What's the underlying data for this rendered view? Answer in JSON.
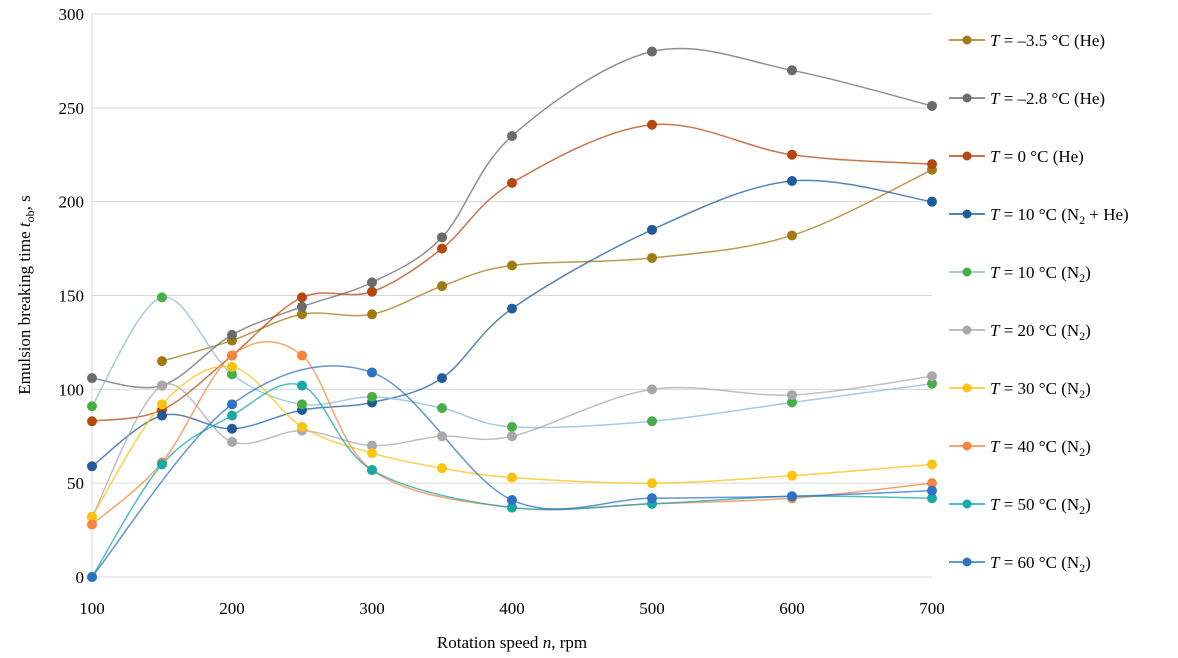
{
  "chart_data": {
    "type": "line",
    "title": "",
    "xlabel": "Rotation speed n, rpm",
    "ylabel": "Emulsion breaking time t_ob, s",
    "xlabel_parts": [
      "Rotation speed ",
      "n",
      ", rpm"
    ],
    "ylabel_parts": [
      "Emulsion breaking time ",
      "t",
      "ob",
      ", s"
    ],
    "xlim": [
      100,
      700
    ],
    "ylim": [
      0,
      300
    ],
    "x_ticks": [
      100,
      200,
      300,
      400,
      500,
      600,
      700
    ],
    "y_ticks": [
      0,
      50,
      100,
      150,
      200,
      250,
      300
    ],
    "grid": "horizontal",
    "legend_position": "right",
    "x": [
      100,
      150,
      200,
      250,
      300,
      350,
      400,
      500,
      600,
      700
    ],
    "series": [
      {
        "name": "T = –3.5 °C (He)",
        "label": " = –3.5 °C (He)",
        "color": "#a07a12",
        "values": [
          null,
          115,
          126,
          140,
          140,
          155,
          166,
          170,
          182,
          217
        ]
      },
      {
        "name": "T = –2.8 °C (He)",
        "label": " = –2.8 °C (He)",
        "color": "#6b6b6b",
        "values": [
          106,
          102,
          129,
          144,
          157,
          181,
          235,
          280,
          270,
          251
        ]
      },
      {
        "name": "T = 0 °C (He)",
        "label": " = 0 °C (He)",
        "color": "#b5470f",
        "values": [
          83,
          89,
          118,
          149,
          152,
          175,
          210,
          241,
          225,
          220
        ]
      },
      {
        "name": "T = 10 °C (N2 + He)",
        "label": " = 10 °C (N",
        "label_sub": "2",
        "label_tail": " + He)",
        "color": "#1f5c99",
        "values": [
          59,
          86,
          79,
          89,
          93,
          106,
          143,
          185,
          211,
          200
        ]
      },
      {
        "name": "T = 10 °C (N2)",
        "label": " = 10 °C (N",
        "label_sub": "2",
        "label_tail": ")",
        "color": "#4aae47",
        "line_color": "#8ab7d8",
        "values": [
          91,
          149,
          108,
          92,
          96,
          90,
          80,
          83,
          93,
          103
        ]
      },
      {
        "name": "T = 20 °C (N2)",
        "label": " = 20 °C (N",
        "label_sub": "2",
        "label_tail": ")",
        "color": "#a9a9a9",
        "values": [
          32,
          102,
          72,
          78,
          70,
          75,
          75,
          100,
          97,
          107
        ]
      },
      {
        "name": "T = 30 °C (N2)",
        "label": " = 30 °C (N",
        "label_sub": "2",
        "label_tail": ")",
        "color": "#ffc20e",
        "values": [
          32,
          92,
          112,
          80,
          66,
          58,
          53,
          50,
          54,
          60
        ]
      },
      {
        "name": "T = 40 °C (N2)",
        "label": " = 40 °C (N",
        "label_sub": "2",
        "label_tail": ")",
        "color": "#f5853f",
        "values": [
          28,
          61,
          118,
          118,
          57,
          null,
          37,
          39,
          42,
          50
        ]
      },
      {
        "name": "T = 50 °C (N2)",
        "label": " = 50 °C (N",
        "label_sub": "2",
        "label_tail": ")",
        "color": "#17a8a8",
        "values": [
          0,
          60,
          86,
          102,
          57,
          null,
          37,
          39,
          43,
          42
        ]
      },
      {
        "name": "T = 60 °C (N2)",
        "label": " = 60 °C (N",
        "label_sub": "2",
        "label_tail": ")",
        "color": "#2f72c4",
        "values": [
          0,
          null,
          92,
          null,
          109,
          null,
          41,
          42,
          43,
          46
        ]
      }
    ]
  }
}
